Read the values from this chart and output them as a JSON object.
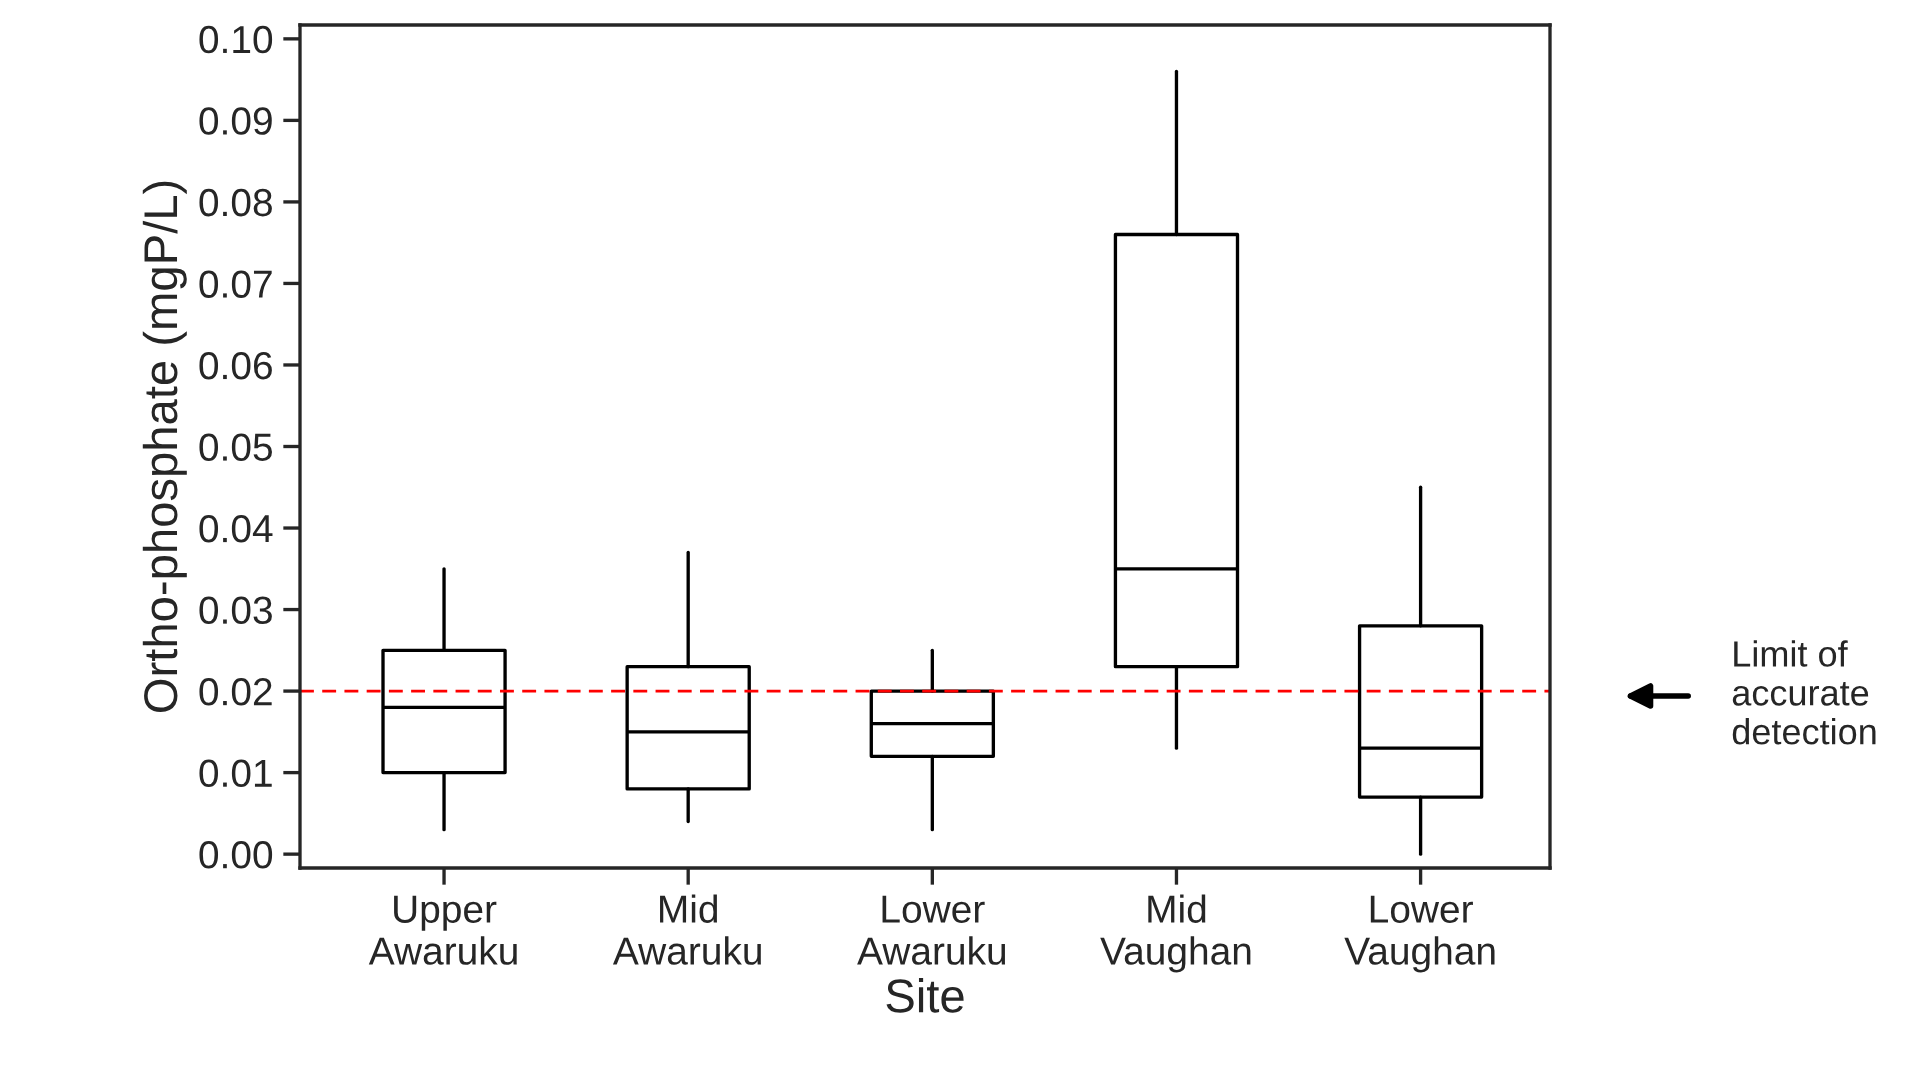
{
  "chart_data": {
    "type": "box",
    "xlabel": "Site",
    "ylabel": "Ortho-phosphate (mgP/L)",
    "categories": [
      "Upper\nAwaruku",
      "Mid\nAwaruku",
      "Lower\nAwaruku",
      "Mid\nVaughan",
      "Lower\nVaughan"
    ],
    "boxes": [
      {
        "low": 0.003,
        "q1": 0.01,
        "median": 0.018,
        "q3": 0.025,
        "high": 0.035
      },
      {
        "low": 0.004,
        "q1": 0.008,
        "median": 0.015,
        "q3": 0.023,
        "high": 0.037
      },
      {
        "low": 0.003,
        "q1": 0.012,
        "median": 0.016,
        "q3": 0.02,
        "high": 0.025
      },
      {
        "low": 0.013,
        "q1": 0.023,
        "median": 0.035,
        "q3": 0.076,
        "high": 0.096
      },
      {
        "low": 0.0,
        "q1": 0.007,
        "median": 0.013,
        "q3": 0.028,
        "high": 0.045
      }
    ],
    "color": "#000000",
    "ylim": [
      -0.0017,
      0.1017
    ],
    "yticks": [
      {
        "value": 0,
        "label": "0.00"
      },
      {
        "value": 0.01,
        "label": "0.01"
      },
      {
        "value": 0.02,
        "label": "0.02"
      },
      {
        "value": 0.03,
        "label": "0.03"
      },
      {
        "value": 0.04,
        "label": "0.04"
      },
      {
        "value": 0.05,
        "label": "0.05"
      },
      {
        "value": 0.06,
        "label": "0.06"
      },
      {
        "value": 0.07,
        "label": "0.07"
      },
      {
        "value": 0.08,
        "label": "0.08"
      },
      {
        "value": 0.09,
        "label": "0.09"
      },
      {
        "value": 0.1,
        "label": "0.10"
      }
    ],
    "ref_lines": [
      {
        "axis": "y",
        "value": 0.02,
        "color": "#ff0000",
        "line_style": "dashed"
      }
    ],
    "annotations": [
      "Limit of\naccurate\ndetection"
    ],
    "grid": false
  }
}
